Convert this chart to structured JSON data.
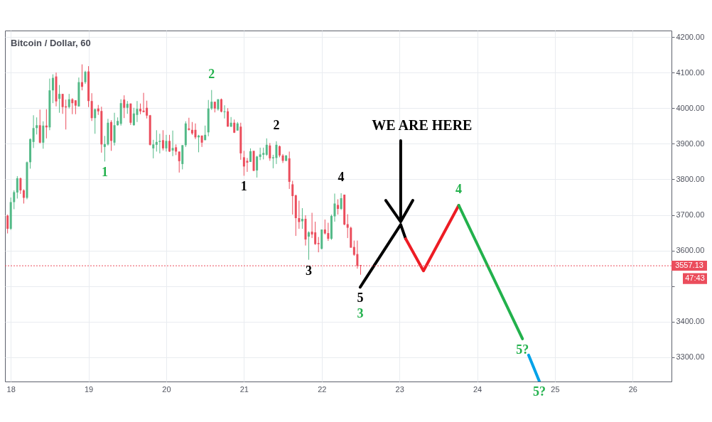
{
  "chart_data": {
    "type": "candlestick",
    "title": "Bitcoin / Dollar, 60",
    "x": [
      17.9583,
      18,
      18.0417,
      18.0833,
      18.125,
      18.1667,
      18.2083,
      18.25,
      18.2917,
      18.3333,
      18.375,
      18.4167,
      18.4583,
      18.5,
      18.5417,
      18.5833,
      18.625,
      18.6667,
      18.7083,
      18.75,
      18.7917,
      18.8333,
      18.875,
      18.9167,
      18.9583,
      19,
      19.0417,
      19.0833,
      19.125,
      19.1667,
      19.2083,
      19.25,
      19.2917,
      19.3333,
      19.375,
      19.4167,
      19.4583,
      19.5,
      19.5417,
      19.5833,
      19.625,
      19.6667,
      19.7083,
      19.75,
      19.7917,
      19.8333,
      19.875,
      19.9167,
      19.9583,
      20,
      20.0417,
      20.0833,
      20.125,
      20.1667,
      20.2083,
      20.25,
      20.2917,
      20.3333,
      20.375,
      20.4167,
      20.4583,
      20.5,
      20.5417,
      20.5833,
      20.625,
      20.6667,
      20.7083,
      20.75,
      20.7917,
      20.8333,
      20.875,
      20.9167,
      20.9583,
      21,
      21.0417,
      21.0833,
      21.125,
      21.1667,
      21.2083,
      21.25,
      21.2917,
      21.3333,
      21.375,
      21.4167,
      21.4583,
      21.5,
      21.5417,
      21.5833,
      21.625,
      21.6667,
      21.7083,
      21.75,
      21.7917,
      21.8333,
      21.875,
      21.9167,
      21.9583,
      22,
      22.0417,
      22.0833,
      22.125,
      22.1667,
      22.2083,
      22.25,
      22.2917,
      22.3333,
      22.375,
      22.4167,
      22.4583,
      22.5
    ],
    "ohlc": [
      [
        3698,
        3701,
        3648,
        3661
      ],
      [
        3661,
        3749,
        3658,
        3736
      ],
      [
        3736,
        3769,
        3716,
        3764
      ],
      [
        3763,
        3809,
        3746,
        3803
      ],
      [
        3803,
        3805,
        3759,
        3769
      ],
      [
        3769,
        3772,
        3732,
        3748
      ],
      [
        3748,
        3850,
        3744,
        3848
      ],
      [
        3848,
        3915,
        3830,
        3913
      ],
      [
        3905,
        3980,
        3888,
        3944
      ],
      [
        3944,
        3974,
        3926,
        3952
      ],
      [
        3952,
        3996,
        3901,
        3903
      ],
      [
        3903,
        3963,
        3886,
        3951
      ],
      [
        3951,
        3997,
        3915,
        3946
      ],
      [
        3946,
        4083,
        3938,
        4050
      ],
      [
        4050,
        4095,
        4014,
        4085
      ],
      [
        4089,
        4100,
        4005,
        4019
      ],
      [
        4026,
        4065,
        3987,
        4040
      ],
      [
        4040,
        4040,
        3984,
        4003
      ],
      [
        4005,
        4024,
        3940,
        4002
      ],
      [
        4003,
        4040,
        3999,
        4025
      ],
      [
        4025,
        4028,
        3983,
        4014
      ],
      [
        4022,
        4022,
        3983,
        4007
      ],
      [
        4005,
        4086,
        4004,
        4073
      ],
      [
        4073,
        4123,
        4050,
        4060
      ],
      [
        4073,
        4105,
        4068,
        4102
      ],
      [
        4103,
        4118,
        4003,
        4020
      ],
      [
        4020,
        4042,
        3964,
        3972
      ],
      [
        3972,
        3999,
        3928,
        3997
      ],
      [
        3999,
        4009,
        3981,
        3991
      ],
      [
        3992,
        4004,
        3875,
        3898
      ],
      [
        3891,
        3922,
        3850,
        3899
      ],
      [
        3898,
        3970,
        3895,
        3959
      ],
      [
        3961,
        3966,
        3880,
        3908
      ],
      [
        3903,
        3987,
        3895,
        3952
      ],
      [
        3952,
        3974,
        3951,
        3964
      ],
      [
        3956,
        4025,
        3951,
        4014
      ],
      [
        4024,
        4036,
        3972,
        4001
      ],
      [
        4001,
        4020,
        3984,
        4012
      ],
      [
        4013,
        4013,
        3953,
        3959
      ],
      [
        3952,
        4001,
        3951,
        3985
      ],
      [
        3981,
        4020,
        3961,
        3998
      ],
      [
        3998,
        4013,
        3983,
        3991
      ],
      [
        3993,
        4043,
        3988,
        3989
      ],
      [
        4001,
        4021,
        3971,
        3979
      ],
      [
        3980,
        3981,
        3895,
        3897
      ],
      [
        3887,
        3911,
        3859,
        3898
      ],
      [
        3897,
        3938,
        3878,
        3905
      ],
      [
        3905,
        3928,
        3873,
        3908
      ],
      [
        3910,
        3938,
        3881,
        3887
      ],
      [
        3887,
        3925,
        3878,
        3908
      ],
      [
        3908,
        3925,
        3877,
        3878
      ],
      [
        3881,
        3937,
        3865,
        3888
      ],
      [
        3890,
        3898,
        3868,
        3878
      ],
      [
        3878,
        3878,
        3819,
        3851
      ],
      [
        3843,
        3896,
        3828,
        3896
      ],
      [
        3896,
        3963,
        3891,
        3957
      ],
      [
        3943,
        3973,
        3937,
        3939
      ],
      [
        3939,
        3961,
        3925,
        3929
      ],
      [
        3939,
        3957,
        3913,
        3918
      ],
      [
        3918,
        3925,
        3876,
        3923
      ],
      [
        3923,
        3923,
        3891,
        3903
      ],
      [
        3910,
        3951,
        3910,
        3925
      ],
      [
        3932,
        4023,
        3921,
        3999
      ],
      [
        3999,
        4051,
        3995,
        4018
      ],
      [
        4018,
        4018,
        3988,
        3999
      ],
      [
        3997,
        4025,
        3993,
        4025
      ],
      [
        4025,
        4027,
        3988,
        3990
      ],
      [
        3989,
        4008,
        3971,
        3991
      ],
      [
        3991,
        4000,
        3948,
        3948
      ],
      [
        3948,
        3975,
        3947,
        3959
      ],
      [
        3959,
        3968,
        3930,
        3931
      ],
      [
        3937,
        3961,
        3937,
        3957
      ],
      [
        3948,
        3959,
        3855,
        3873
      ],
      [
        3862,
        3880,
        3810,
        3836
      ],
      [
        3852,
        3860,
        3821,
        3847
      ],
      [
        3849,
        3887,
        3849,
        3879
      ],
      [
        3880,
        3880,
        3823,
        3824
      ],
      [
        3825,
        3866,
        3805,
        3864
      ],
      [
        3863,
        3889,
        3854,
        3870
      ],
      [
        3869,
        3889,
        3856,
        3874
      ],
      [
        3869,
        3915,
        3866,
        3897
      ],
      [
        3895,
        3902,
        3852,
        3859
      ],
      [
        3859,
        3869,
        3831,
        3862
      ],
      [
        3860,
        3907,
        3843,
        3897
      ],
      [
        3893,
        3895,
        3862,
        3867
      ],
      [
        3867,
        3871,
        3846,
        3852
      ],
      [
        3852,
        3868,
        3851,
        3867
      ],
      [
        3859,
        3878,
        3773,
        3793
      ],
      [
        3786,
        3796,
        3701,
        3753
      ],
      [
        3755,
        3757,
        3641,
        3691
      ],
      [
        3691,
        3740,
        3661,
        3680
      ],
      [
        3682,
        3719,
        3661,
        3689
      ],
      [
        3689,
        3699,
        3614,
        3631
      ],
      [
        3639,
        3654,
        3574,
        3651
      ],
      [
        3653,
        3706,
        3635,
        3645
      ],
      [
        3651,
        3681,
        3616,
        3618
      ],
      [
        3621,
        3638,
        3595,
        3618
      ],
      [
        3605,
        3659,
        3603,
        3659
      ],
      [
        3659,
        3687,
        3645,
        3648
      ],
      [
        3649,
        3678,
        3627,
        3633
      ],
      [
        3633,
        3701,
        3630,
        3697
      ],
      [
        3696,
        3760,
        3681,
        3732
      ],
      [
        3728,
        3744,
        3701,
        3717
      ],
      [
        3717,
        3761,
        3714,
        3747
      ],
      [
        3757,
        3757,
        3671,
        3673
      ],
      [
        3674,
        3702,
        3635,
        3664
      ],
      [
        3664,
        3667,
        3608,
        3608
      ],
      [
        3610,
        3628,
        3585,
        3588
      ],
      [
        3590,
        3628,
        3549,
        3557
      ],
      [
        3559,
        3559,
        3532,
        3557
      ]
    ],
    "colors": [
      "#eb4d5c",
      "#53b987",
      "#53b987",
      "#53b987",
      "#eb4d5c",
      "#eb4d5c",
      "#53b987",
      "#53b987",
      "#53b987",
      "#53b987",
      "#eb4d5c",
      "#53b987",
      "#eb4d5c",
      "#53b987",
      "#53b987",
      "#eb4d5c",
      "#53b987",
      "#eb4d5c",
      "#eb4d5c",
      "#53b987",
      "#eb4d5c",
      "#eb4d5c",
      "#53b987",
      "#eb4d5c",
      "#53b987",
      "#eb4d5c",
      "#eb4d5c",
      "#53b987",
      "#eb4d5c",
      "#eb4d5c",
      "#53b987",
      "#53b987",
      "#eb4d5c",
      "#53b987",
      "#53b987",
      "#53b987",
      "#eb4d5c",
      "#53b987",
      "#eb4d5c",
      "#53b987",
      "#53b987",
      "#eb4d5c",
      "#eb4d5c",
      "#eb4d5c",
      "#eb4d5c",
      "#53b987",
      "#53b987",
      "#53b987",
      "#eb4d5c",
      "#53b987",
      "#eb4d5c",
      "#53b987",
      "#eb4d5c",
      "#eb4d5c",
      "#53b987",
      "#53b987",
      "#eb4d5c",
      "#eb4d5c",
      "#eb4d5c",
      "#53b987",
      "#eb4d5c",
      "#53b987",
      "#53b987",
      "#53b987",
      "#eb4d5c",
      "#53b987",
      "#eb4d5c",
      "#53b987",
      "#eb4d5c",
      "#53b987",
      "#eb4d5c",
      "#53b987",
      "#eb4d5c",
      "#eb4d5c",
      "#eb4d5c",
      "#53b987",
      "#eb4d5c",
      "#53b987",
      "#53b987",
      "#53b987",
      "#53b987",
      "#eb4d5c",
      "#53b987",
      "#53b987",
      "#eb4d5c",
      "#eb4d5c",
      "#53b987",
      "#eb4d5c",
      "#eb4d5c",
      "#eb4d5c",
      "#eb4d5c",
      "#53b987",
      "#eb4d5c",
      "#53b987",
      "#eb4d5c",
      "#eb4d5c",
      "#eb4d5c",
      "#53b987",
      "#eb4d5c",
      "#eb4d5c",
      "#53b987",
      "#53b987",
      "#eb4d5c",
      "#53b987",
      "#eb4d5c",
      "#eb4d5c",
      "#eb4d5c",
      "#eb4d5c",
      "#eb4d5c",
      "#eb4d5c"
    ],
    "series": [
      {
        "type": "line",
        "color": "#000000",
        "x": [
          22.495,
          23.016,
          23.08
        ],
        "values": [
          3497,
          3673,
          3633
        ]
      },
      {
        "type": "line",
        "color": "#ed1c24",
        "x": [
          23.08,
          23.309,
          23.763
        ],
        "values": [
          3633,
          3543,
          3727
        ]
      },
      {
        "type": "line",
        "color": "#22b14c",
        "x": [
          23.763,
          24.583
        ],
        "values": [
          3727,
          3352
        ]
      },
      {
        "type": "line",
        "color": "#00a2e8",
        "x": [
          24.662,
          24.799
        ],
        "values": [
          3306,
          3233
        ]
      }
    ],
    "xlim": [
      17.925,
      26.5
    ],
    "xticks": [
      18,
      19,
      20,
      21,
      22,
      23,
      24,
      25,
      26
    ],
    "ylim": [
      3232,
      4218
    ],
    "yticks": [
      {
        "value": 3300,
        "label": "3300.00"
      },
      {
        "value": 3400,
        "label": "3400.00"
      },
      {
        "value": 3500,
        "label": null
      },
      {
        "value": 3600,
        "label": "3600.00"
      },
      {
        "value": 3700,
        "label": "3700.00"
      },
      {
        "value": 3800,
        "label": "3800.00"
      },
      {
        "value": 3900,
        "label": "3900.00"
      },
      {
        "value": 4000,
        "label": "4000.00"
      },
      {
        "value": 4100,
        "label": "4100.00"
      },
      {
        "value": 4200,
        "label": "4200.00"
      }
    ],
    "grid": true,
    "ref_lines": [
      {
        "axis": "y",
        "value": 3557.13,
        "label": "3557.13",
        "color": "#eb4d5c",
        "line_style": "dotted"
      }
    ],
    "annotations": [
      {
        "text": "1",
        "x": 19.2083,
        "y": 3850
      },
      {
        "text": "2",
        "x": 20.5833,
        "y": 4051
      },
      {
        "text": "1",
        "x": 21.0,
        "y": 3810
      },
      {
        "text": "2",
        "x": 21.4167,
        "y": 3907
      },
      {
        "text": "3",
        "x": 21.8333,
        "y": 3574
      },
      {
        "text": "4",
        "x": 22.25,
        "y": 3761
      },
      {
        "text": "5",
        "x": 22.495,
        "y": 3497
      },
      {
        "text": "3",
        "x": 22.495,
        "y": 3497
      },
      {
        "text": "4",
        "x": 23.763,
        "y": 3727
      },
      {
        "text": "5?",
        "x": 24.583,
        "y": 3352
      },
      {
        "text": "5?",
        "x": 24.799,
        "y": 3233
      },
      {
        "text": "WE ARE HERE",
        "x": 23.016,
        "y": 3673
      },
      "47:43"
    ]
  }
}
